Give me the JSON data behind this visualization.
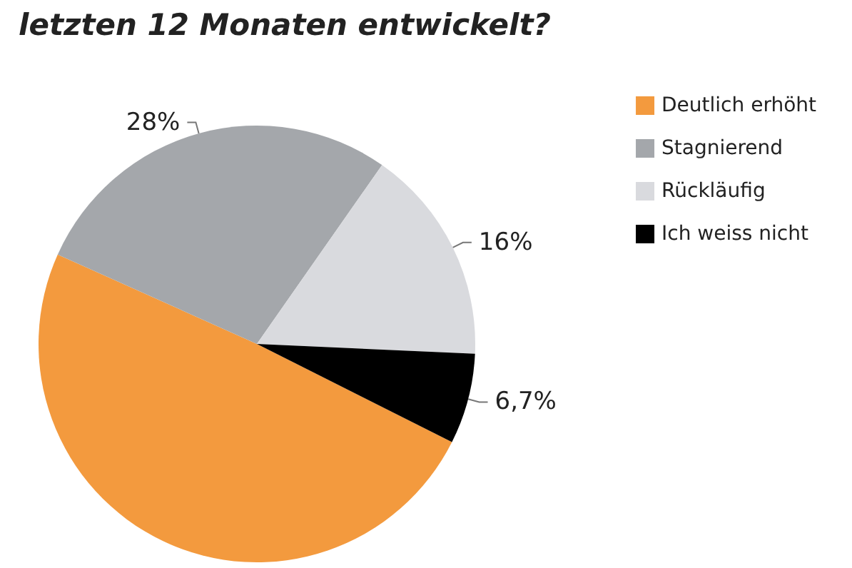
{
  "chart_data": {
    "type": "pie",
    "title": "letzten 12 Monaten entwickelt?",
    "categories": [
      "Deutlich erhöht",
      "Stagnierend",
      "Rückläufig",
      "Ich weiss nicht"
    ],
    "values": [
      49.3,
      28,
      16,
      6.7
    ],
    "colors": [
      "#f39a3e",
      "#a4a7ab",
      "#d9dade",
      "#000000"
    ],
    "value_labels": [
      null,
      "28%",
      "16%",
      "6,7%"
    ],
    "legend": "right"
  }
}
